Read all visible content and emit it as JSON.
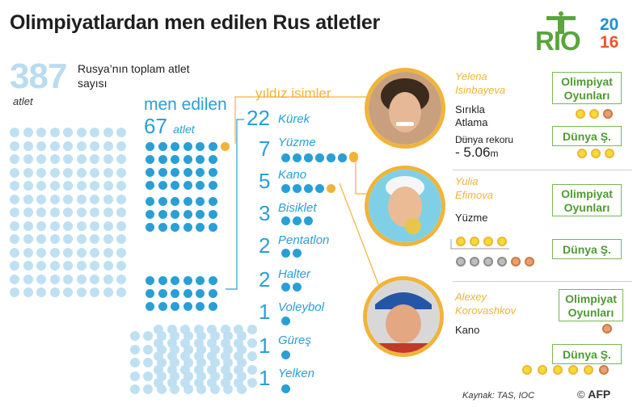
{
  "title": "Olimpiyatlardan men edilen Rus atletler",
  "logo": {
    "letters": "RIO",
    "year_top": "20",
    "year_bottom": "16"
  },
  "total": {
    "number": "387",
    "unit": "atlet",
    "label": "Rusya’nın toplam atlet sayısı"
  },
  "banned": {
    "label": "men edilen",
    "number": "67",
    "unit": "atlet"
  },
  "stars_label": "yıldız isimler",
  "sports": [
    {
      "count": "22",
      "name": "Kürek"
    },
    {
      "count": "7",
      "name": "Yüzme"
    },
    {
      "count": "5",
      "name": "Kano"
    },
    {
      "count": "3",
      "name": "Bisiklet"
    },
    {
      "count": "2",
      "name": "Pentatlon"
    },
    {
      "count": "2",
      "name": "Halter"
    },
    {
      "count": "1",
      "name": "Voleybol"
    },
    {
      "count": "1",
      "name": "Güreş"
    },
    {
      "count": "1",
      "name": "Yelken"
    }
  ],
  "athletes": [
    {
      "name_line1": "Yelena",
      "name_line2": "Isinbayeva",
      "event_line1": "Sırıkla",
      "event_line2": "Atlama",
      "record_label": "Dünya rekoru",
      "record_value": "- 5.06",
      "record_unit": "m",
      "olympic_label_1": "Olimpiyat",
      "olympic_label_2": "Oyunları",
      "world_label": "Dünya Ş."
    },
    {
      "name_line1": "Yulia",
      "name_line2": "Efimova",
      "event_line1": "Yüzme",
      "olympic_label_1": "Olimpiyat",
      "olympic_label_2": "Oyunları",
      "world_label": "Dünya Ş."
    },
    {
      "name_line1": "Alexey",
      "name_line2": "Korovashkov",
      "event_line1": "Kano",
      "olympic_label_1": "Olimpiyat",
      "olympic_label_2": "Oyunları",
      "world_label": "Dünya Ş."
    }
  ],
  "medals": {
    "isinbayeva_olympic": [
      "gold",
      "gold",
      "bronze"
    ],
    "isinbayeva_world": [
      "gold",
      "gold",
      "gold"
    ],
    "efimova_world_row1": [
      "gold",
      "gold",
      "gold",
      "gold"
    ],
    "efimova_world_row2": [
      "silver",
      "silver",
      "silver",
      "silver",
      "bronze",
      "bronze"
    ],
    "korovashkov_olympic": [
      "bronze"
    ],
    "korovashkov_world": [
      "gold",
      "gold",
      "gold",
      "gold",
      "gold",
      "bronze"
    ]
  },
  "colors": {
    "blue": "#2a9fd6",
    "light_blue": "#bfe0f2",
    "orange": "#f0b43a",
    "green": "#4e9a32"
  },
  "source": "Kaynak: TAS, IOC",
  "credit": "AFP"
}
